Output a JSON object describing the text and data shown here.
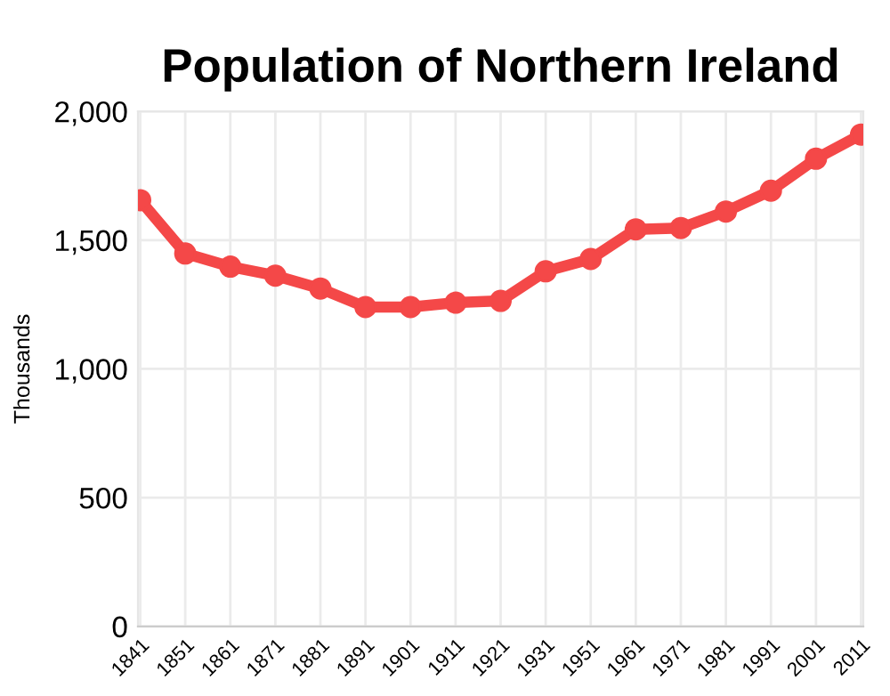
{
  "chart_data": {
    "type": "line",
    "title": "Population of Northern Ireland",
    "ylabel": "Thousands",
    "categories": [
      "1841",
      "1851",
      "1861",
      "1871",
      "1881",
      "1891",
      "1901",
      "1911",
      "1921",
      "1931",
      "1951",
      "1961",
      "1971",
      "1981",
      "1991",
      "2001",
      "2011"
    ],
    "series": [
      {
        "color": "#f44848",
        "values": [
          1655,
          1448,
          1397,
          1362,
          1312,
          1240,
          1240,
          1257,
          1264,
          1379,
          1427,
          1542,
          1547,
          1611,
          1692,
          1816,
          1910
        ]
      }
    ],
    "ylim": [
      0,
      2000
    ],
    "yticks": [
      {
        "value": 0,
        "label": "0"
      },
      {
        "value": 500,
        "label": "500"
      },
      {
        "value": 1000,
        "label": "1,000"
      },
      {
        "value": 1500,
        "label": "1,500"
      },
      {
        "value": 2000,
        "label": "2,000"
      }
    ],
    "grid": true,
    "marker": "circle",
    "line_style": "solid"
  }
}
